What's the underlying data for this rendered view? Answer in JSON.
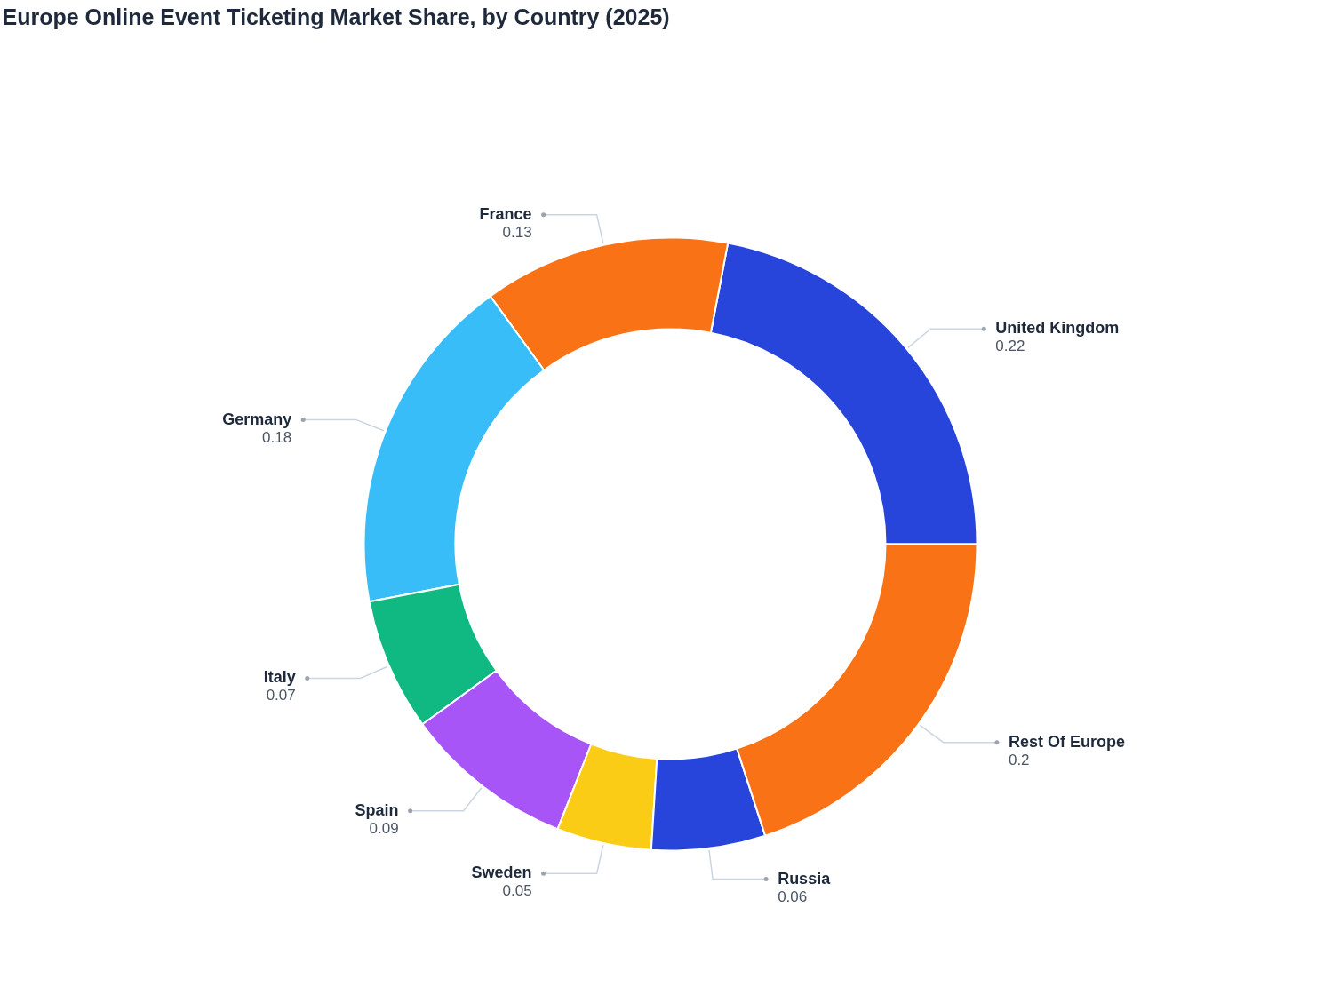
{
  "chart_data": {
    "type": "donut",
    "title": "Europe Online Event Ticketing Market Share, by Country (2025)",
    "categories": [
      "United Kingdom",
      "France",
      "Germany",
      "Italy",
      "Spain",
      "Sweden",
      "Russia",
      "Rest Of Europe"
    ],
    "values": [
      0.22,
      0.13,
      0.18,
      0.07,
      0.09,
      0.05,
      0.06,
      0.2
    ],
    "colors": [
      "#2845db",
      "#f97316",
      "#38bdf8",
      "#10b981",
      "#a855f7",
      "#facc15",
      "#2845db",
      "#f97316"
    ],
    "data_labels": true
  }
}
